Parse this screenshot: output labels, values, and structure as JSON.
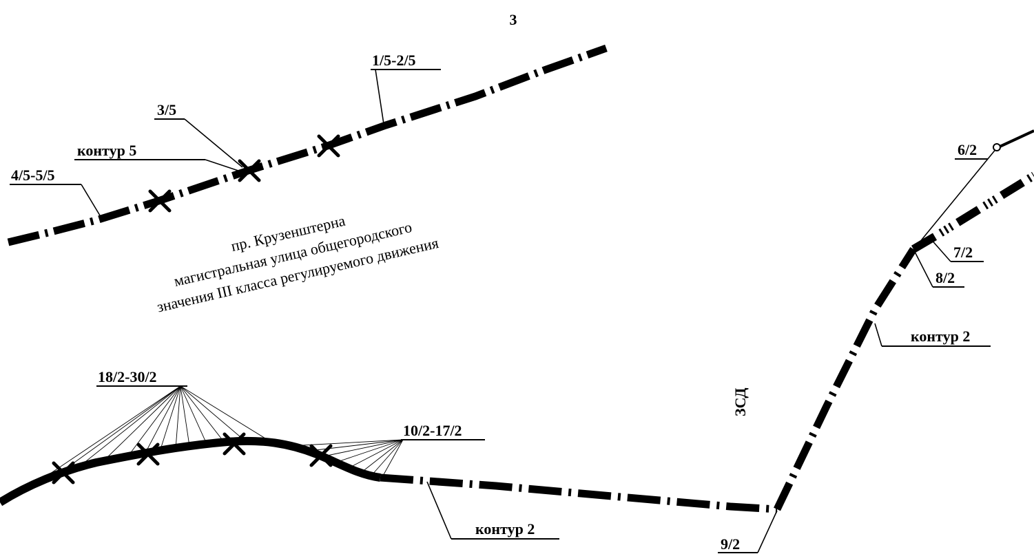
{
  "sheet_number": "3",
  "labels": {
    "l_1_5_2_5": "1/5-2/5",
    "l_3_5": "3/5",
    "l_kontur5": "контур 5",
    "l_4_5_5_5": "4/5-5/5",
    "l_6_2": "6/2",
    "l_7_2": "7/2",
    "l_8_2": "8/2",
    "l_kontur2_right": "контур 2",
    "l_18_2_30_2": "18/2-30/2",
    "l_10_2_17_2": "10/2-17/2",
    "l_kontur2_bottom": "контур 2",
    "l_9_2": "9/2",
    "l_zsd": "ЗСД"
  },
  "street": {
    "line1": "пр. Крузенштерна",
    "line2": "магистральная улица общегородского",
    "line3": "значения III класса регулируемого движения"
  }
}
